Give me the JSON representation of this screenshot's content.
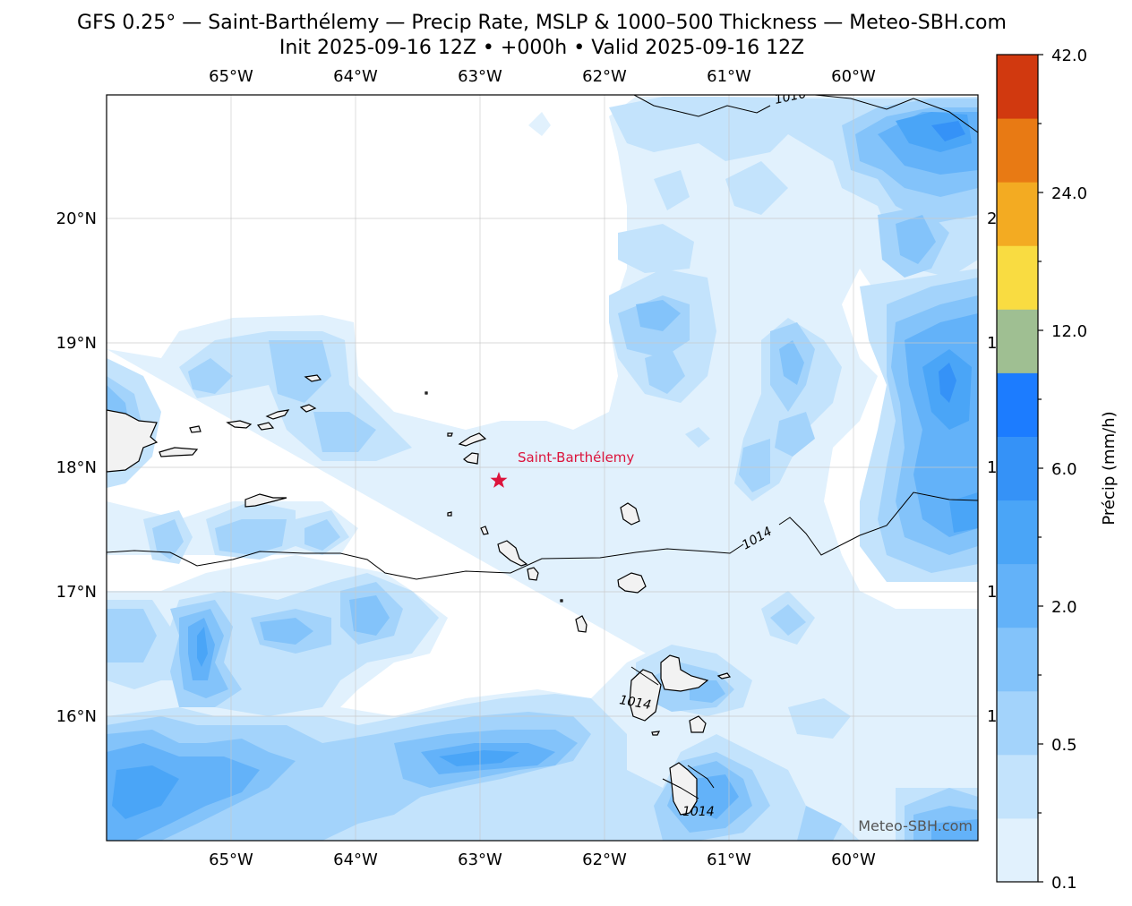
{
  "header": {
    "title": "GFS 0.25° — Saint-Barthélemy — Precip Rate, MSLP & 1000–500 Thickness — Meteo-SBH.com",
    "subtitle": "Init 2025-09-16 12Z • +000h • Valid 2025-09-16 12Z"
  },
  "map": {
    "lon_ticks": [
      "65°W",
      "64°W",
      "63°W",
      "62°W",
      "61°W",
      "60°W"
    ],
    "lat_ticks": [
      "20°N",
      "19°N",
      "18°N",
      "17°N",
      "16°N"
    ],
    "marker_label": "Saint-Barthélemy",
    "marker_color": "#dc143c",
    "isobar_labels": [
      "1016",
      "1014",
      "1014",
      "1014"
    ],
    "right_edge_labels": [
      "2",
      "1",
      "1",
      "1",
      "1"
    ],
    "watermark": "Meteo-SBH.com"
  },
  "colorbar": {
    "label": "Précip (mm/h)",
    "tick_labels": [
      "0.1",
      "0.5",
      "2.0",
      "6.0",
      "12.0",
      "24.0",
      "42.0"
    ],
    "colors": [
      "#e1f1fd",
      "#c3e3fc",
      "#a3d3fb",
      "#83c3fa",
      "#63b2f9",
      "#4aa5f7",
      "#3592f7",
      "#1c7cff",
      "#9fbf92",
      "#f9dc41",
      "#f3ab22",
      "#e87a14",
      "#d1390f"
    ]
  }
}
